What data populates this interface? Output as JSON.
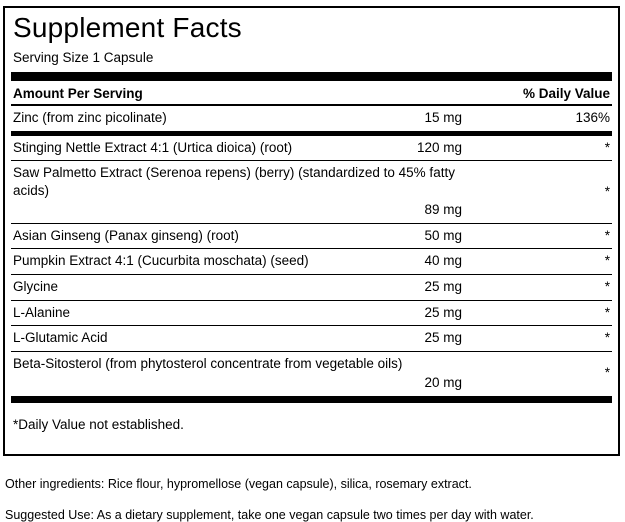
{
  "panel": {
    "title": "Supplement Facts",
    "serving_size": "Serving Size 1 Capsule",
    "header": {
      "amount": "Amount Per Serving",
      "daily_value": "% Daily Value"
    },
    "rows": [
      {
        "name": "Zinc (from zinc picolinate)",
        "amount": "15 mg",
        "dv": "136%"
      },
      {
        "name": "Stinging Nettle Extract 4:1 (Urtica dioica) (root)",
        "amount": "120 mg",
        "dv": "*"
      },
      {
        "name": "Saw Palmetto Extract (Serenoa repens) (berry) (standardized to 45% fatty acids)",
        "amount": "89 mg",
        "dv": "*",
        "two_line": true
      },
      {
        "name": "Asian Ginseng (Panax ginseng) (root)",
        "amount": "50 mg",
        "dv": "*"
      },
      {
        "name": "Pumpkin Extract 4:1 (Cucurbita moschata) (seed)",
        "amount": "40 mg",
        "dv": "*"
      },
      {
        "name": "Glycine",
        "amount": "25 mg",
        "dv": "*"
      },
      {
        "name": "L-Alanine",
        "amount": "25 mg",
        "dv": "*"
      },
      {
        "name": "L-Glutamic Acid",
        "amount": "25 mg",
        "dv": "*"
      },
      {
        "name": "Beta-Sitosterol (from phytosterol concentrate from vegetable oils)",
        "amount": "20 mg",
        "dv": "*",
        "two_line": true
      }
    ],
    "footnote": "*Daily Value not established."
  },
  "other_ingredients": "Other ingredients: Rice flour, hypromellose (vegan capsule), silica, rosemary extract.",
  "suggested_use": "Suggested Use: As a dietary supplement, take one vegan capsule two times per day with water.",
  "colors": {
    "text": "#000000",
    "background": "#ffffff",
    "rule": "#000000"
  }
}
